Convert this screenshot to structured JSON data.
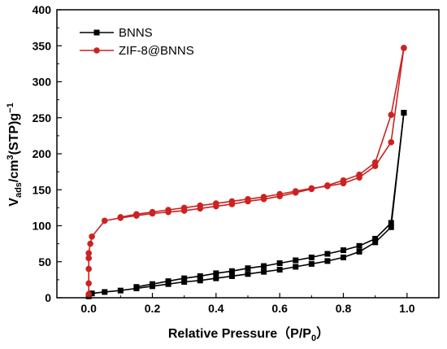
{
  "chart_data": {
    "type": "line",
    "xlabel": "Relative Pressure（P/P0）",
    "xlabel_parts": {
      "main": "Relative Pressure（P/P",
      "sub": "0",
      "end": "）"
    },
    "ylabel": "Vads/cm3(STP)g−1",
    "ylabel_parts": {
      "v": "V",
      "ads": "ads",
      "mid": "/cm",
      "three": "3",
      "stp": "(STP)g",
      "neg1": "−1"
    },
    "xlim": [
      -0.1,
      1.1
    ],
    "ylim": [
      0,
      400
    ],
    "x_ticks": [
      0.0,
      0.2,
      0.4,
      0.6,
      0.8,
      1.0
    ],
    "x_tick_labels": [
      "0.0",
      "0.2",
      "0.4",
      "0.6",
      "0.8",
      "1.0"
    ],
    "y_ticks": [
      0,
      50,
      100,
      150,
      200,
      250,
      300,
      350,
      400
    ],
    "y_tick_labels": [
      "0",
      "50",
      "100",
      "150",
      "200",
      "250",
      "300",
      "350",
      "400"
    ],
    "grid": false,
    "legend_position": "top-left",
    "series": [
      {
        "name": "BNNS",
        "color": "#000000",
        "marker": "square",
        "adsorption": {
          "x": [
            0.0,
            0.01,
            0.05,
            0.1,
            0.15,
            0.2,
            0.25,
            0.3,
            0.35,
            0.4,
            0.45,
            0.5,
            0.55,
            0.6,
            0.65,
            0.7,
            0.75,
            0.8,
            0.85,
            0.9,
            0.95,
            0.99
          ],
          "y": [
            2,
            6,
            8,
            10,
            13,
            16,
            19,
            22,
            24,
            27,
            30,
            33,
            36,
            39,
            43,
            47,
            51,
            56,
            64,
            77,
            98,
            257
          ]
        },
        "desorption": {
          "x": [
            0.99,
            0.95,
            0.9,
            0.85,
            0.8,
            0.75,
            0.7,
            0.65,
            0.6,
            0.55,
            0.5,
            0.45,
            0.4,
            0.35,
            0.3,
            0.25,
            0.2,
            0.15
          ],
          "y": [
            257,
            104,
            82,
            72,
            66,
            61,
            56,
            52,
            48,
            44,
            41,
            37,
            34,
            30,
            27,
            23,
            19,
            15
          ]
        }
      },
      {
        "name": "ZIF-8@BNNS",
        "color": "#cc2222",
        "marker": "circle",
        "adsorption": {
          "x": [
            0.0,
            0.0,
            0.0,
            0.0,
            0.0,
            0.005,
            0.01,
            0.05,
            0.1,
            0.15,
            0.2,
            0.25,
            0.3,
            0.35,
            0.4,
            0.45,
            0.5,
            0.55,
            0.6,
            0.65,
            0.7,
            0.75,
            0.8,
            0.85,
            0.9,
            0.95,
            0.99
          ],
          "y": [
            5,
            20,
            40,
            55,
            62,
            75,
            85,
            107,
            111,
            114,
            117,
            119,
            121,
            124,
            127,
            130,
            134,
            137,
            141,
            146,
            151,
            156,
            163,
            171,
            188,
            254,
            347
          ]
        },
        "desorption": {
          "x": [
            0.99,
            0.95,
            0.9,
            0.85,
            0.8,
            0.75,
            0.7,
            0.65,
            0.6,
            0.55,
            0.5,
            0.45,
            0.4,
            0.35,
            0.3,
            0.25,
            0.2,
            0.15,
            0.1
          ],
          "y": [
            347,
            216,
            183,
            167,
            159,
            155,
            152,
            148,
            144,
            140,
            137,
            134,
            131,
            128,
            125,
            122,
            119,
            116,
            112
          ]
        }
      }
    ]
  }
}
